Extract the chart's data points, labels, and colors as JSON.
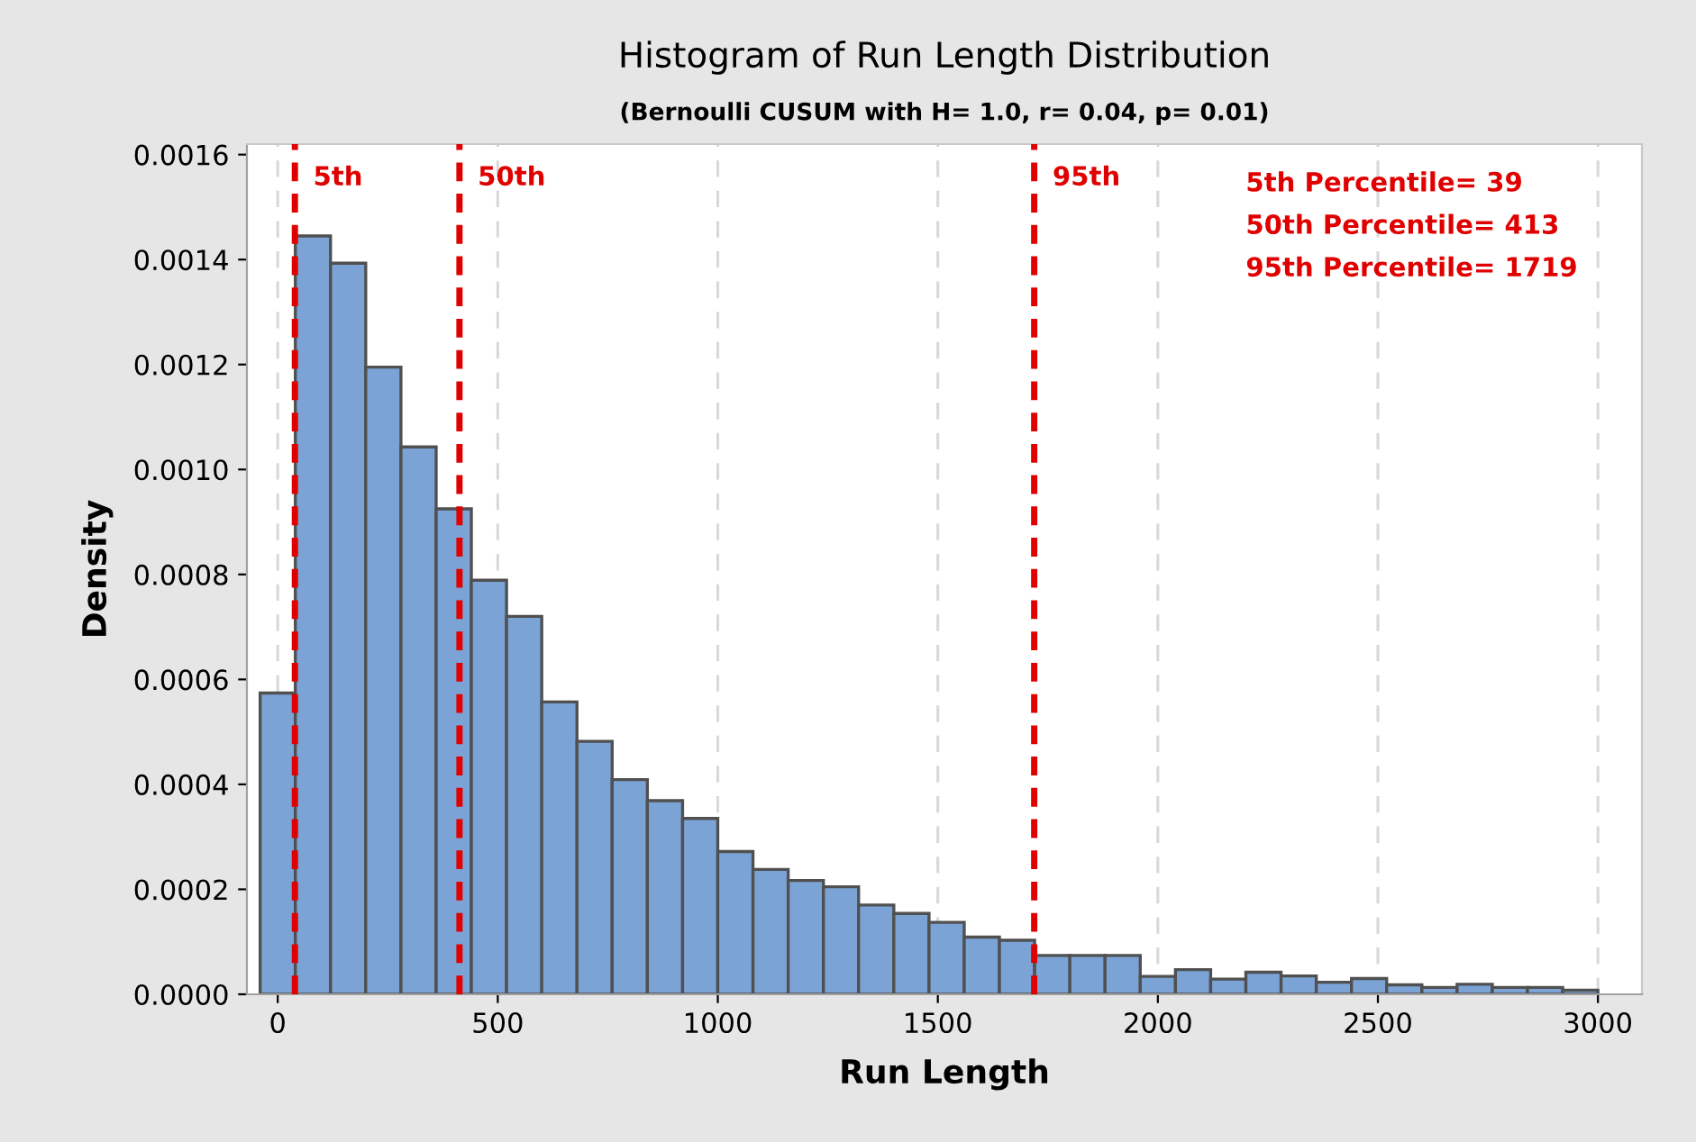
{
  "chart_data": {
    "type": "histogram",
    "title": "Histogram of Run Length Distribution",
    "subtitle": "(Bernoulli CUSUM with H= 1.0, r= 0.04, p= 0.01)",
    "xlabel": "Run Length",
    "ylabel": "Density",
    "bins": [
      -40,
      40,
      120,
      200,
      280,
      360,
      440,
      520,
      600,
      680,
      760,
      840,
      920,
      1000,
      1080,
      1160,
      1240,
      1320,
      1400,
      1480,
      1560,
      1640,
      1720,
      1800,
      1880,
      1960,
      2040,
      2120,
      2200,
      2280,
      2360,
      2440,
      2520,
      2600,
      2680,
      2760,
      2840,
      2920,
      3000
    ],
    "values": [
      0.000574,
      0.001445,
      0.001393,
      0.001195,
      0.001043,
      0.000925,
      0.000789,
      0.00072,
      0.000557,
      0.000482,
      0.000409,
      0.000369,
      0.000335,
      0.000272,
      0.000238,
      0.000217,
      0.000205,
      0.00017,
      0.000154,
      0.000137,
      0.000109,
      0.000103,
      7.4e-05,
      7.4e-05,
      7.4e-05,
      3.4e-05,
      4.7e-05,
      2.9e-05,
      4.2e-05,
      3.5e-05,
      2.3e-05,
      3e-05,
      1.8e-05,
      1.3e-05,
      1.9e-05,
      1.3e-05,
      1.3e-05,
      8e-06
    ],
    "color": "#7ba3d6",
    "xlim": [
      -70,
      3100
    ],
    "ylim": [
      0,
      0.00162
    ],
    "xticks": [
      0,
      500,
      1000,
      1500,
      2000,
      2500,
      3000
    ],
    "yticks": [
      {
        "value": 0,
        "label": "0.0000"
      },
      {
        "value": 0.0002,
        "label": "0.0002"
      },
      {
        "value": 0.0004,
        "label": "0.0004"
      },
      {
        "value": 0.0006,
        "label": "0.0006"
      },
      {
        "value": 0.0008,
        "label": "0.0008"
      },
      {
        "value": 0.001,
        "label": "0.0010"
      },
      {
        "value": 0.0012,
        "label": "0.0012"
      },
      {
        "value": 0.0014,
        "label": "0.0014"
      },
      {
        "value": 0.0016,
        "label": "0.0016"
      }
    ],
    "grid": "x",
    "ref_lines": [
      {
        "axis": "x",
        "value": 39,
        "label": "5th",
        "color": "#e00000",
        "line_style": "dashed"
      },
      {
        "axis": "x",
        "value": 413,
        "label": "50th",
        "color": "#e00000",
        "line_style": "dashed"
      },
      {
        "axis": "x",
        "value": 1719,
        "label": "95th",
        "color": "#e00000",
        "line_style": "dashed"
      }
    ],
    "annotations": [
      "5th Percentile= 39",
      "50th Percentile= 413",
      "95th Percentile= 1719"
    ]
  }
}
